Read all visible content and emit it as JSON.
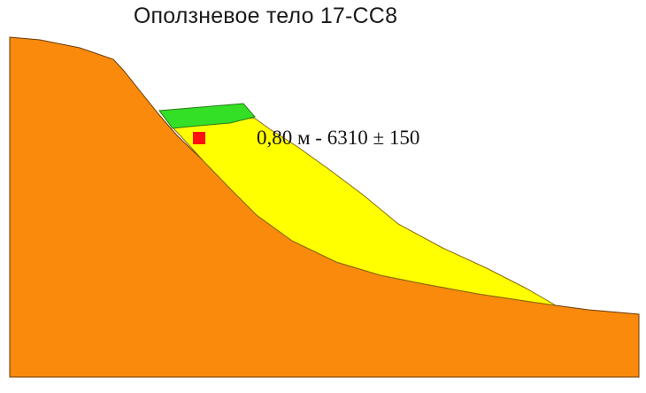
{
  "title": "Оползневое тело 17-СС8",
  "sample": {
    "label": "0,80 м - 6310 ± 150"
  },
  "colors": {
    "bedrock": "#F98A0C",
    "landslide_body": "#FFFF00",
    "soil_cap": "#33E026",
    "sample_marker": "#FF1010"
  }
}
